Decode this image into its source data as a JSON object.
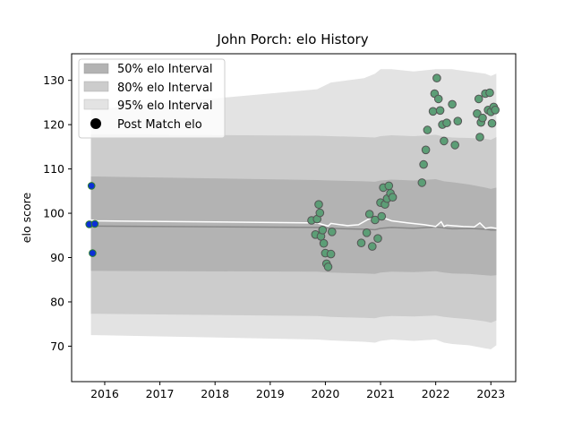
{
  "chart_data": {
    "type": "line",
    "title": "John Porch: elo History",
    "xlabel": "",
    "ylabel": "elo score",
    "xlim": [
      2015.4,
      2023.45
    ],
    "ylim": [
      62,
      136
    ],
    "x_ticks": [
      2016,
      2017,
      2018,
      2019,
      2020,
      2021,
      2022,
      2023
    ],
    "y_ticks": [
      70,
      80,
      90,
      100,
      110,
      120,
      130
    ],
    "grid": false,
    "legend_position": "top-left",
    "legend": {
      "interval_50": "50% elo Interval",
      "interval_80": "80% elo Interval",
      "interval_95": "95% elo Interval",
      "post_match": "Post Match elo"
    },
    "colors": {
      "band_50": "#b3b3b3",
      "band_80": "#cccccc",
      "band_95": "#e3e3e3",
      "mean_line": "#888888",
      "post_line": "#ffffff",
      "scatter_fill": "#5c9e76",
      "scatter_edge": "#555555",
      "initial_fill": "#0b2fd6",
      "initial_edge": "#2e7d32"
    },
    "bands": {
      "x": [
        2015.75,
        2015.85,
        2019.85,
        2020.1,
        2020.7,
        2020.9,
        2021.0,
        2021.2,
        2021.6,
        2022.0,
        2022.15,
        2022.3,
        2022.6,
        2022.9,
        2023.0,
        2023.1
      ],
      "mean": [
        97.1,
        97.1,
        96.8,
        96.6,
        96.4,
        96.3,
        96.6,
        96.8,
        96.6,
        96.9,
        96.7,
        96.5,
        96.6,
        96.4,
        96.2,
        96.2
      ],
      "p50_lo": [
        87.0,
        87.0,
        86.8,
        86.6,
        86.4,
        86.3,
        86.6,
        86.8,
        86.7,
        86.9,
        86.6,
        86.4,
        86.3,
        86.0,
        85.9,
        86.0
      ],
      "p50_hi": [
        108.3,
        108.3,
        107.5,
        107.4,
        107.2,
        107.1,
        107.4,
        107.6,
        107.4,
        107.7,
        107.2,
        107.0,
        106.5,
        105.8,
        105.5,
        105.8
      ],
      "p80_lo": [
        77.3,
        77.3,
        76.8,
        76.6,
        76.4,
        76.3,
        76.6,
        76.8,
        76.7,
        76.9,
        76.6,
        76.4,
        76.1,
        75.6,
        75.3,
        75.8
      ],
      "p80_hi": [
        117.8,
        117.8,
        117.5,
        117.4,
        117.2,
        117.1,
        117.4,
        117.6,
        117.4,
        117.7,
        117.3,
        117.1,
        117.0,
        116.8,
        116.6,
        117.2
      ],
      "p95_lo": [
        72.5,
        72.5,
        71.5,
        71.3,
        71.0,
        70.8,
        71.2,
        71.5,
        71.2,
        71.5,
        70.8,
        70.5,
        70.2,
        69.5,
        69.3,
        70.2
      ],
      "p95_hi": [
        123.5,
        123.5,
        128.0,
        129.5,
        130.5,
        131.5,
        132.5,
        132.5,
        132.0,
        132.5,
        132.5,
        132.5,
        132.0,
        131.5,
        131.0,
        131.5
      ]
    },
    "post_line": {
      "x": [
        2015.75,
        2015.85,
        2019.85,
        2020.05,
        2020.1,
        2020.4,
        2020.6,
        2020.8,
        2021.0,
        2021.2,
        2021.5,
        2021.8,
        2022.0,
        2022.1,
        2022.15,
        2022.2,
        2022.5,
        2022.7,
        2022.8,
        2022.9,
        2023.0,
        2023.1
      ],
      "y": [
        98.5,
        98.3,
        97.8,
        97.1,
        97.7,
        97.2,
        97.4,
        98.8,
        99.2,
        98.3,
        97.8,
        97.4,
        97.0,
        98.1,
        97.0,
        97.3,
        97.0,
        96.9,
        97.8,
        96.6,
        96.8,
        96.6
      ]
    },
    "initial_points": {
      "x": [
        2015.72,
        2015.76,
        2015.78,
        2015.82
      ],
      "y": [
        97.5,
        106.2,
        91.0,
        97.6
      ]
    },
    "post_match_points": {
      "x": [
        2019.75,
        2019.82,
        2019.85,
        2019.88,
        2019.9,
        2019.92,
        2019.95,
        2019.97,
        2020.0,
        2020.02,
        2020.05,
        2020.1,
        2020.12,
        2020.65,
        2020.75,
        2020.8,
        2020.85,
        2020.9,
        2020.95,
        2021.0,
        2021.02,
        2021.05,
        2021.08,
        2021.12,
        2021.15,
        2021.18,
        2021.22,
        2021.75,
        2021.78,
        2021.82,
        2021.85,
        2021.95,
        2021.98,
        2022.02,
        2022.05,
        2022.08,
        2022.12,
        2022.15,
        2022.2,
        2022.3,
        2022.35,
        2022.4,
        2022.75,
        2022.78,
        2022.8,
        2022.82,
        2022.85,
        2022.9,
        2022.95,
        2022.98,
        2023.0,
        2023.02,
        2023.05,
        2023.08
      ],
      "y": [
        98.4,
        95.2,
        98.7,
        102.0,
        100.1,
        94.8,
        96.2,
        93.2,
        91.0,
        88.6,
        87.9,
        90.8,
        95.8,
        93.3,
        95.6,
        99.8,
        92.5,
        98.5,
        94.3,
        102.4,
        99.3,
        105.8,
        102.0,
        103.3,
        106.2,
        104.5,
        103.6,
        106.9,
        111.0,
        114.3,
        118.8,
        123.0,
        127.0,
        130.5,
        125.8,
        123.2,
        120.0,
        116.3,
        120.4,
        124.6,
        115.4,
        120.8,
        122.5,
        125.8,
        117.2,
        120.5,
        121.5,
        127.0,
        123.3,
        127.2,
        122.9,
        120.3,
        124.0,
        123.3
      ]
    }
  }
}
